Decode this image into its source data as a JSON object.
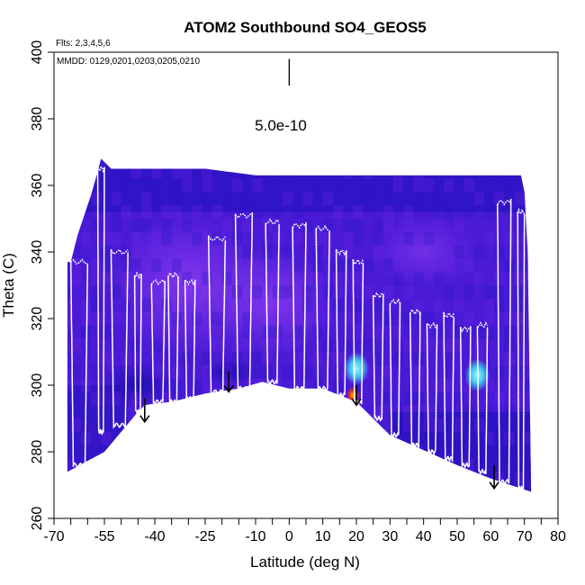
{
  "chart_data": {
    "type": "heatmap",
    "title": "ATOM2 Southbound SO4_GEOS5",
    "flights_label": "Flts: 2,3,4,5,6",
    "dates_label": "MMDD: 0129,0201,0203,0205,0210",
    "scale_label": "5.0e-10",
    "xlabel": "Latitude (deg N)",
    "ylabel": "Theta (C)",
    "xlim": [
      -70,
      80
    ],
    "ylim": [
      260,
      400
    ],
    "x_ticks": [
      -70,
      -55,
      -40,
      -25,
      -10,
      0,
      10,
      20,
      30,
      40,
      50,
      60,
      70,
      80
    ],
    "x_minor_ticks": [
      -65,
      -60,
      -50,
      -45,
      -35,
      -30,
      -20,
      -15,
      -5,
      5,
      15,
      25,
      35,
      45,
      55,
      65,
      75
    ],
    "y_ticks": [
      260,
      280,
      300,
      320,
      340,
      360,
      380,
      400
    ],
    "colors": {
      "background_field": "#4a1ad6",
      "dark_field": "#1e10b8",
      "light_field": "#7a2ee8",
      "hotspot_cyan": "#3fc7f0",
      "hotspot_red": "#e0301a",
      "track": "#ffffff",
      "arrow": "#000000"
    },
    "surface_boundary": [
      [
        -66,
        274
      ],
      [
        -55,
        280
      ],
      [
        -45,
        292
      ],
      [
        -43,
        294
      ],
      [
        -40,
        294.5
      ],
      [
        -35,
        295
      ],
      [
        -25,
        297.5
      ],
      [
        -15,
        299
      ],
      [
        -8,
        301
      ],
      [
        0,
        299
      ],
      [
        10,
        299
      ],
      [
        20,
        295
      ],
      [
        30,
        285
      ],
      [
        40,
        280.5
      ],
      [
        50,
        276
      ],
      [
        60,
        272
      ],
      [
        72,
        268
      ]
    ],
    "top_boundary": [
      [
        -66,
        337
      ],
      [
        -65,
        337
      ],
      [
        -63,
        345
      ],
      [
        -61,
        351
      ],
      [
        -59,
        357
      ],
      [
        -57,
        364
      ],
      [
        -56,
        368
      ],
      [
        -54,
        366
      ],
      [
        -53,
        365
      ],
      [
        -30,
        365
      ],
      [
        -25,
        365
      ],
      [
        -10,
        363
      ],
      [
        3,
        363
      ],
      [
        23,
        363
      ],
      [
        40,
        363
      ],
      [
        58,
        363
      ],
      [
        69,
        363
      ],
      [
        70,
        358
      ],
      [
        71,
        340
      ],
      [
        72,
        268
      ]
    ],
    "flight_profiles": [
      {
        "lat_low": -65,
        "lat_high": -60,
        "theta_low": 276,
        "theta_high": 337
      },
      {
        "lat_low": -57,
        "lat_high": -55,
        "theta_low": 286,
        "theta_high": 365
      },
      {
        "lat_low": -53,
        "lat_high": -48,
        "theta_low": 288,
        "theta_high": 340
      },
      {
        "lat_low": -46,
        "lat_high": -44,
        "theta_low": 292,
        "theta_high": 333
      },
      {
        "lat_low": -41,
        "lat_high": -37,
        "theta_low": 295,
        "theta_high": 331
      },
      {
        "lat_low": -36,
        "lat_high": -33,
        "theta_low": 295,
        "theta_high": 333
      },
      {
        "lat_low": -31,
        "lat_high": -28,
        "theta_low": 296,
        "theta_high": 331
      },
      {
        "lat_low": -24,
        "lat_high": -19,
        "theta_low": 298,
        "theta_high": 344
      },
      {
        "lat_low": -16,
        "lat_high": -11,
        "theta_low": 299,
        "theta_high": 351
      },
      {
        "lat_low": -7,
        "lat_high": -3,
        "theta_low": 301,
        "theta_high": 349
      },
      {
        "lat_low": 1,
        "lat_high": 5,
        "theta_low": 299,
        "theta_high": 348
      },
      {
        "lat_low": 8,
        "lat_high": 12,
        "theta_low": 299,
        "theta_high": 347
      },
      {
        "lat_low": 14,
        "lat_high": 17,
        "theta_low": 297,
        "theta_high": 340
      },
      {
        "lat_low": 19,
        "lat_high": 22,
        "theta_low": 295,
        "theta_high": 337
      },
      {
        "lat_low": 25,
        "lat_high": 28,
        "theta_low": 290,
        "theta_high": 327
      },
      {
        "lat_low": 30,
        "lat_high": 33,
        "theta_low": 285,
        "theta_high": 325
      },
      {
        "lat_low": 36,
        "lat_high": 39,
        "theta_low": 282,
        "theta_high": 322
      },
      {
        "lat_low": 41,
        "lat_high": 44,
        "theta_low": 280,
        "theta_high": 318
      },
      {
        "lat_low": 46,
        "lat_high": 49,
        "theta_low": 278,
        "theta_high": 321
      },
      {
        "lat_low": 51,
        "lat_high": 54,
        "theta_low": 276,
        "theta_high": 317
      },
      {
        "lat_low": 56,
        "lat_high": 59,
        "theta_low": 274,
        "theta_high": 318
      },
      {
        "lat_low": 62,
        "lat_high": 66,
        "theta_low": 271,
        "theta_high": 355
      },
      {
        "lat_low": 68,
        "lat_high": 70,
        "theta_low": 269,
        "theta_high": 352
      }
    ],
    "arrows": [
      {
        "lat": -43,
        "theta_top": 296,
        "theta_tip": 289
      },
      {
        "lat": -18,
        "theta_top": 304,
        "theta_tip": 298
      },
      {
        "lat": 20,
        "theta_top": 300,
        "theta_tip": 294
      },
      {
        "lat": 61,
        "theta_top": 276,
        "theta_tip": 269
      }
    ],
    "hotspots": [
      {
        "lat": 20,
        "theta": 305,
        "color_key": "hotspot_cyan"
      },
      {
        "lat": 56,
        "theta": 303,
        "color_key": "hotspot_cyan"
      },
      {
        "lat": 19,
        "theta": 297,
        "color_key": "hotspot_red"
      }
    ],
    "scale_bar": {
      "lat": 0,
      "theta_top": 398,
      "theta_bottom": 384
    }
  }
}
